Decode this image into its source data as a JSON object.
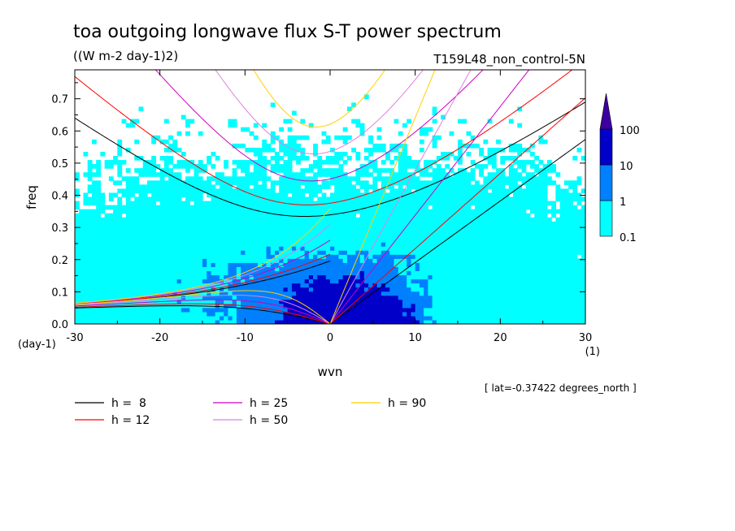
{
  "title": "toa outgoing longwave flux S-T power spectrum",
  "units": "((W m-2 day-1)2)",
  "experiment": "T159L48_non_control-5N",
  "note": "[ lat=-0.37422 degrees_north ]",
  "chart_data": {
    "type": "heatmap",
    "xlabel": "wvn",
    "ylabel": "freq",
    "xunit": "(1)",
    "yunit": "(day-1)",
    "xlim": [
      -30,
      30
    ],
    "ylim": [
      0,
      0.79
    ],
    "xticks": [
      -30,
      -20,
      -10,
      0,
      10,
      20,
      30
    ],
    "xtick_labels": [
      "-30",
      "-20",
      "-10",
      "0",
      "10",
      "20",
      "30"
    ],
    "yticks": [
      0,
      0.1,
      0.2,
      0.3,
      0.4,
      0.5,
      0.6,
      0.7
    ],
    "ytick_labels": [
      "0.0",
      "0.1",
      "0.2",
      "0.3",
      "0.4",
      "0.5",
      "0.6",
      "0.7"
    ],
    "colorbar": {
      "levels": [
        0.1,
        1,
        10,
        100
      ],
      "labels": [
        "0.1",
        "1",
        "10",
        "100"
      ],
      "colors": [
        "#00ffff",
        "#0080ff",
        "#0000c8",
        "#3c00a0"
      ]
    },
    "dispersion_curves": [
      {
        "label": "h =  8",
        "h": 8,
        "color": "#000000"
      },
      {
        "label": "h = 12",
        "h": 12,
        "color": "#ff0000"
      },
      {
        "label": "h = 25",
        "h": 25,
        "color": "#d000c0"
      },
      {
        "label": "h = 50",
        "h": 50,
        "color": "#e080e0"
      },
      {
        "label": "h = 90",
        "h": 90,
        "color": "#ffd000"
      }
    ]
  }
}
